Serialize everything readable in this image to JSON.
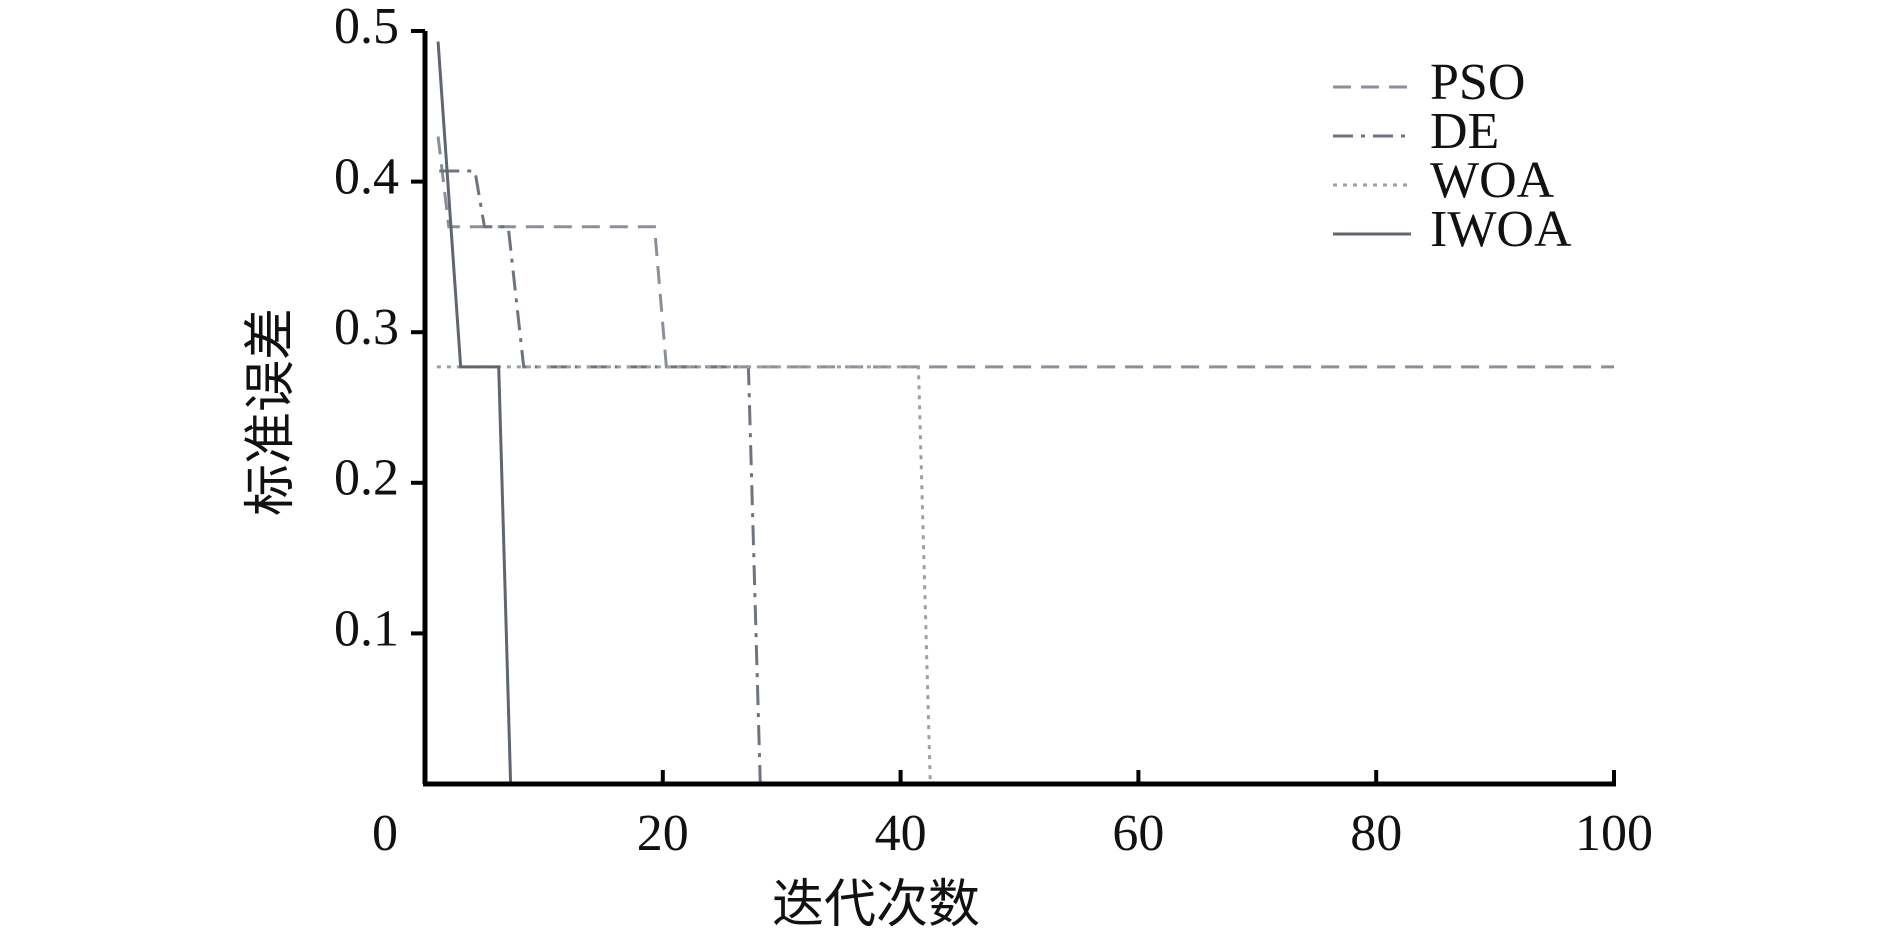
{
  "chart_data": {
    "type": "line",
    "x_label": "迭代次数",
    "y_label": "标准误差",
    "xlim": [
      0,
      100
    ],
    "xticks": [
      0,
      20,
      40,
      60,
      80,
      100
    ],
    "ylim": [
      0,
      0.5
    ],
    "yticks": [
      0.1,
      0.2,
      0.3,
      0.4,
      0.5
    ],
    "legend": "upper right",
    "series": [
      {
        "name": "PSO",
        "color": "#8a8f99",
        "dash": "dashed",
        "x": [
          1.1,
          2,
          19.3,
          20.3,
          100
        ],
        "values": [
          0.43,
          0.37,
          0.37,
          0.277,
          0.277
        ]
      },
      {
        "name": "DE",
        "color": "#6d7480",
        "dash": "dashdot",
        "x": [
          1.2,
          4.2,
          5,
          7,
          8.3,
          27.2,
          28.2,
          100
        ],
        "values": [
          0.407,
          0.407,
          0.37,
          0.37,
          0.277,
          0.277,
          0,
          0
        ]
      },
      {
        "name": "WOA",
        "color": "#9aa0a8",
        "dash": "dotted",
        "x": [
          1,
          41.5,
          42.5,
          100
        ],
        "values": [
          0.277,
          0.277,
          0,
          0
        ]
      },
      {
        "name": "IWOA",
        "color": "#5f6670",
        "dash": "solid",
        "x": [
          1.1,
          3,
          6.2,
          7.2,
          100
        ],
        "values": [
          0.493,
          0.277,
          0.277,
          0,
          0
        ]
      }
    ]
  }
}
